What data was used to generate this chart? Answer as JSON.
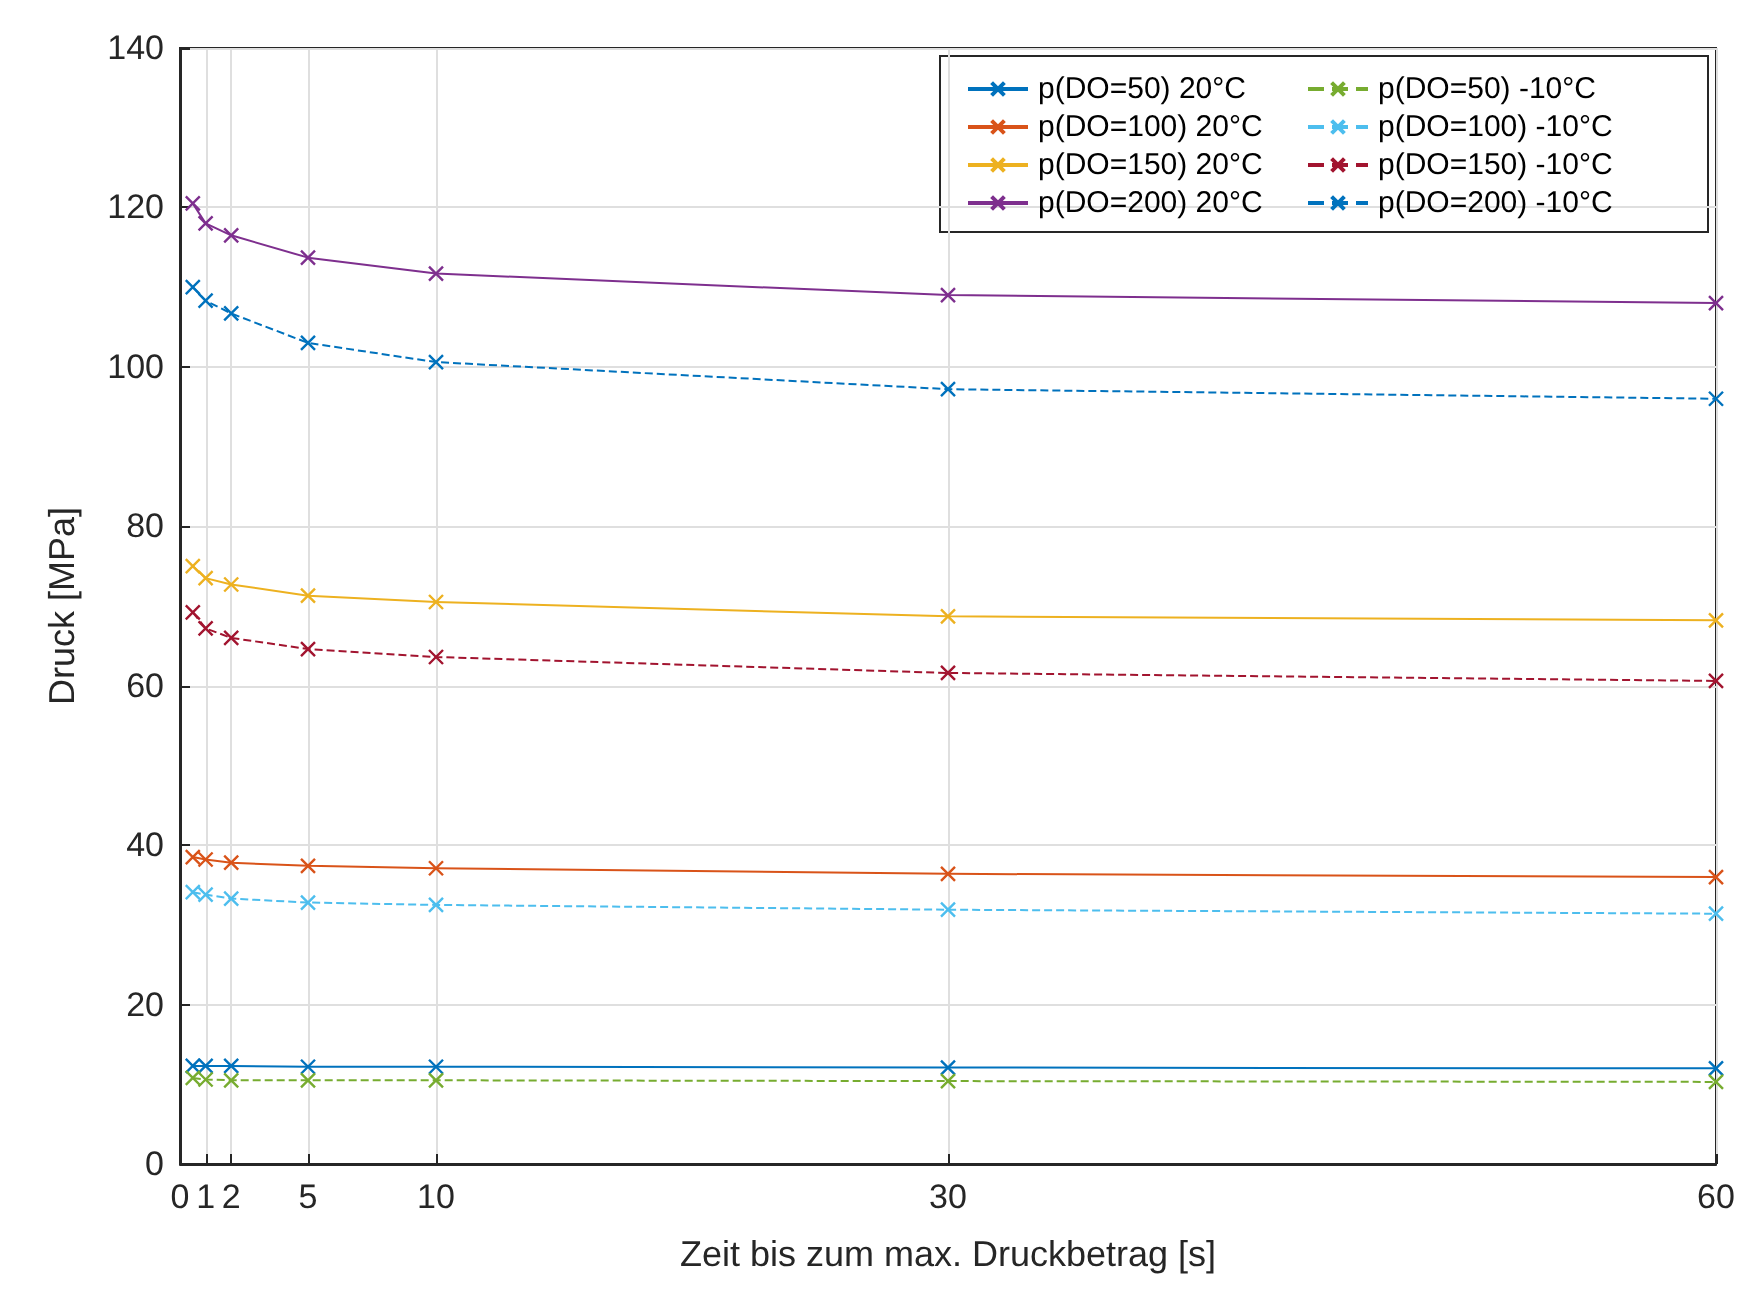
{
  "chart_data": {
    "type": "line",
    "xlabel": "Zeit bis zum max. Druckbetrag [s]",
    "ylabel": "Druck [MPa]",
    "x": [
      0.5,
      1,
      2,
      5,
      10,
      30,
      60
    ],
    "xlim": [
      0,
      60
    ],
    "xticks": [
      0,
      1,
      2,
      5,
      10,
      30,
      60
    ],
    "ylim": [
      0,
      140
    ],
    "yticks": [
      0,
      20,
      40,
      60,
      80,
      100,
      120,
      140
    ],
    "grid": true,
    "legend": "top right",
    "marker": "cross",
    "series": [
      {
        "name": "p(DO=50) 20°C",
        "color": "#0072bd",
        "line_style": "solid",
        "values": [
          12.3,
          12.3,
          12.3,
          12.2,
          12.2,
          12.1,
          12.0
        ]
      },
      {
        "name": "p(DO=50) -10°C",
        "color": "#77ac30",
        "line_style": "dashed",
        "values": [
          10.8,
          10.6,
          10.5,
          10.5,
          10.5,
          10.4,
          10.3
        ]
      },
      {
        "name": "p(DO=100) 20°C",
        "color": "#d95319",
        "line_style": "solid",
        "values": [
          38.5,
          38.2,
          37.8,
          37.4,
          37.1,
          36.4,
          36.0
        ]
      },
      {
        "name": "p(DO=100) -10°C",
        "color": "#4dbeee",
        "line_style": "dashed",
        "values": [
          34.1,
          33.8,
          33.3,
          32.8,
          32.5,
          31.9,
          31.4
        ]
      },
      {
        "name": "p(DO=150) 20°C",
        "color": "#edb120",
        "line_style": "solid",
        "values": [
          75.0,
          73.5,
          72.7,
          71.3,
          70.5,
          68.7,
          68.2
        ]
      },
      {
        "name": "p(DO=150) -10°C",
        "color": "#a2142f",
        "line_style": "dashed",
        "values": [
          69.2,
          67.2,
          66.0,
          64.6,
          63.6,
          61.6,
          60.6
        ]
      },
      {
        "name": "p(DO=200) 20°C",
        "color": "#7e2f8e",
        "line_style": "solid",
        "values": [
          120.5,
          118.0,
          116.5,
          113.7,
          111.7,
          109.0,
          108.0
        ]
      },
      {
        "name": "p(DO=200) -10°C",
        "color": "#0072bd",
        "line_style": "dashed",
        "values": [
          110.0,
          108.3,
          106.7,
          103.0,
          100.6,
          97.2,
          96.0
        ]
      }
    ]
  }
}
